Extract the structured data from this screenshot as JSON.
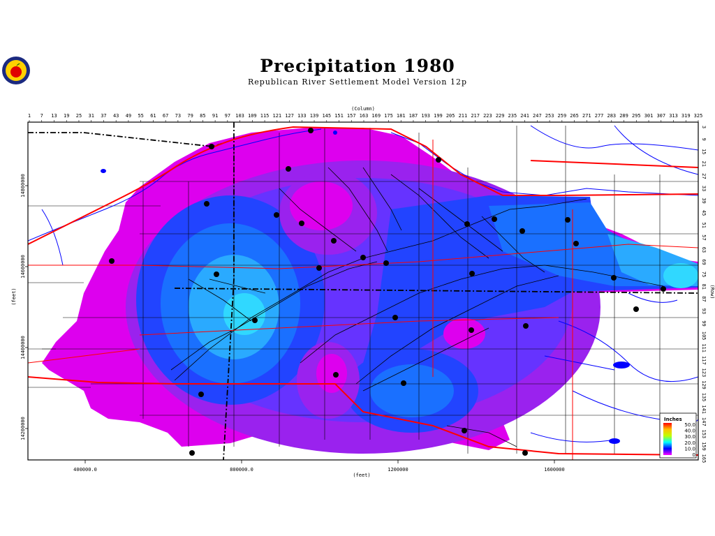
{
  "header": {
    "title": "Precipitation 1980",
    "subtitle": "Republican River Settlement Model Version 12p",
    "logo_icon": "apple-seal-logo-icon"
  },
  "axes": {
    "top_label": "(Column)",
    "right_label": "(Row)",
    "left_label": "(feet)",
    "bottom_label": "(feet)",
    "columns": [
      "1",
      "7",
      "13",
      "19",
      "25",
      "31",
      "37",
      "43",
      "49",
      "55",
      "61",
      "67",
      "73",
      "79",
      "85",
      "91",
      "97",
      "103",
      "109",
      "115",
      "121",
      "127",
      "133",
      "139",
      "145",
      "151",
      "157",
      "163",
      "169",
      "175",
      "181",
      "187",
      "193",
      "199",
      "205",
      "211",
      "217",
      "223",
      "229",
      "235",
      "241",
      "247",
      "253",
      "259",
      "265",
      "271",
      "277",
      "283",
      "289",
      "295",
      "301",
      "307",
      "313",
      "319",
      "325"
    ],
    "rows": [
      "3",
      "9",
      "15",
      "21",
      "27",
      "33",
      "39",
      "45",
      "51",
      "57",
      "63",
      "69",
      "75",
      "81",
      "87",
      "93",
      "99",
      "105",
      "111",
      "117",
      "123",
      "129",
      "135",
      "141",
      "147",
      "153",
      "159",
      "165"
    ],
    "x_ticks": [
      {
        "label": "400000.0",
        "value": 400000
      },
      {
        "label": "800000.0",
        "value": 800000
      },
      {
        "label": "1200000",
        "value": 1200000
      },
      {
        "label": "1600000",
        "value": 1600000
      }
    ],
    "y_ticks": [
      {
        "label": "14800000",
        "value": 14800000
      },
      {
        "label": "14600000",
        "value": 14600000
      },
      {
        "label": "14400000",
        "value": 14400000
      },
      {
        "label": "14200000",
        "value": 14200000
      }
    ]
  },
  "legend": {
    "title": "Inches",
    "entries": [
      {
        "label": "50.0",
        "color": "#ff0000"
      },
      {
        "label": "40.0",
        "color": "#ffc000"
      },
      {
        "label": "30.0",
        "color": "#c0ff00"
      },
      {
        "label": "20.0",
        "color": "#00ffff"
      },
      {
        "label": "10.0",
        "color": "#0000ff"
      },
      {
        "label": "0",
        "color": "#ff00ff"
      }
    ]
  },
  "colors": {
    "magenta": "#dd00ee",
    "violet": "#9a22ee",
    "blue_violet": "#6633ff",
    "blue": "#2244ff",
    "mid_blue": "#1a70ff",
    "light_blue": "#2aaaff",
    "cyan": "#30d8ff",
    "river": "#0000ff",
    "road": "#ff0000",
    "state_line": "#000000",
    "county_line": "#000000",
    "station": "#000000"
  }
}
